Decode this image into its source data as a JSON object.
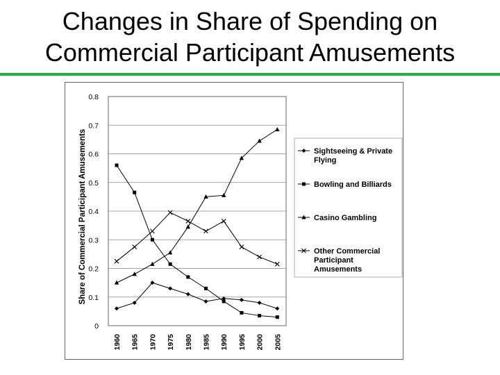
{
  "slide": {
    "title_line1": "Changes in Share of Spending on",
    "title_line2": "Commercial Participant Amusements"
  },
  "colors": {
    "accent_rule": "#22b33a",
    "series": "#000000",
    "grid": "#888888"
  },
  "chart_data": {
    "type": "line",
    "title": "",
    "xlabel": "",
    "ylabel": "Share of Commercial Participant Amusements",
    "ylim": [
      0,
      0.8
    ],
    "yticks": [
      0,
      0.1,
      0.2,
      0.3,
      0.4,
      0.5,
      0.6,
      0.7,
      0.8
    ],
    "ytick_labels": [
      "0",
      "0.1",
      "0.2",
      "0.3",
      "0.4",
      "0.5",
      "0.6",
      "0.7",
      "0.8"
    ],
    "x": [
      "1960",
      "1965",
      "1970",
      "1975",
      "1980",
      "1985",
      "1990",
      "1995",
      "2000",
      "2005"
    ],
    "grid": "horizontal",
    "legend_position": "right",
    "series": [
      {
        "name": "Sightseeing & Private Flying",
        "marker": "diamond",
        "values": [
          0.06,
          0.08,
          0.15,
          0.13,
          0.11,
          0.085,
          0.095,
          0.09,
          0.08,
          0.06
        ]
      },
      {
        "name": "Bowling and Billiards",
        "marker": "square",
        "values": [
          0.56,
          0.465,
          0.3,
          0.215,
          0.17,
          0.13,
          0.085,
          0.045,
          0.035,
          0.03
        ]
      },
      {
        "name": "Casino Gambling",
        "marker": "triangle",
        "values": [
          0.15,
          0.18,
          0.215,
          0.255,
          0.345,
          0.45,
          0.455,
          0.585,
          0.645,
          0.685
        ]
      },
      {
        "name": "Other Commercial Participant Amusements",
        "marker": "x",
        "values": [
          0.225,
          0.275,
          0.33,
          0.395,
          0.365,
          0.33,
          0.365,
          0.275,
          0.24,
          0.215
        ]
      }
    ],
    "legend_lines": [
      [
        "Sightseeing & Private",
        "Flying"
      ],
      [
        "Bowling and Billiards"
      ],
      [
        "Casino Gambling"
      ],
      [
        "Other Commercial",
        "Participant",
        "Amusements"
      ]
    ]
  }
}
